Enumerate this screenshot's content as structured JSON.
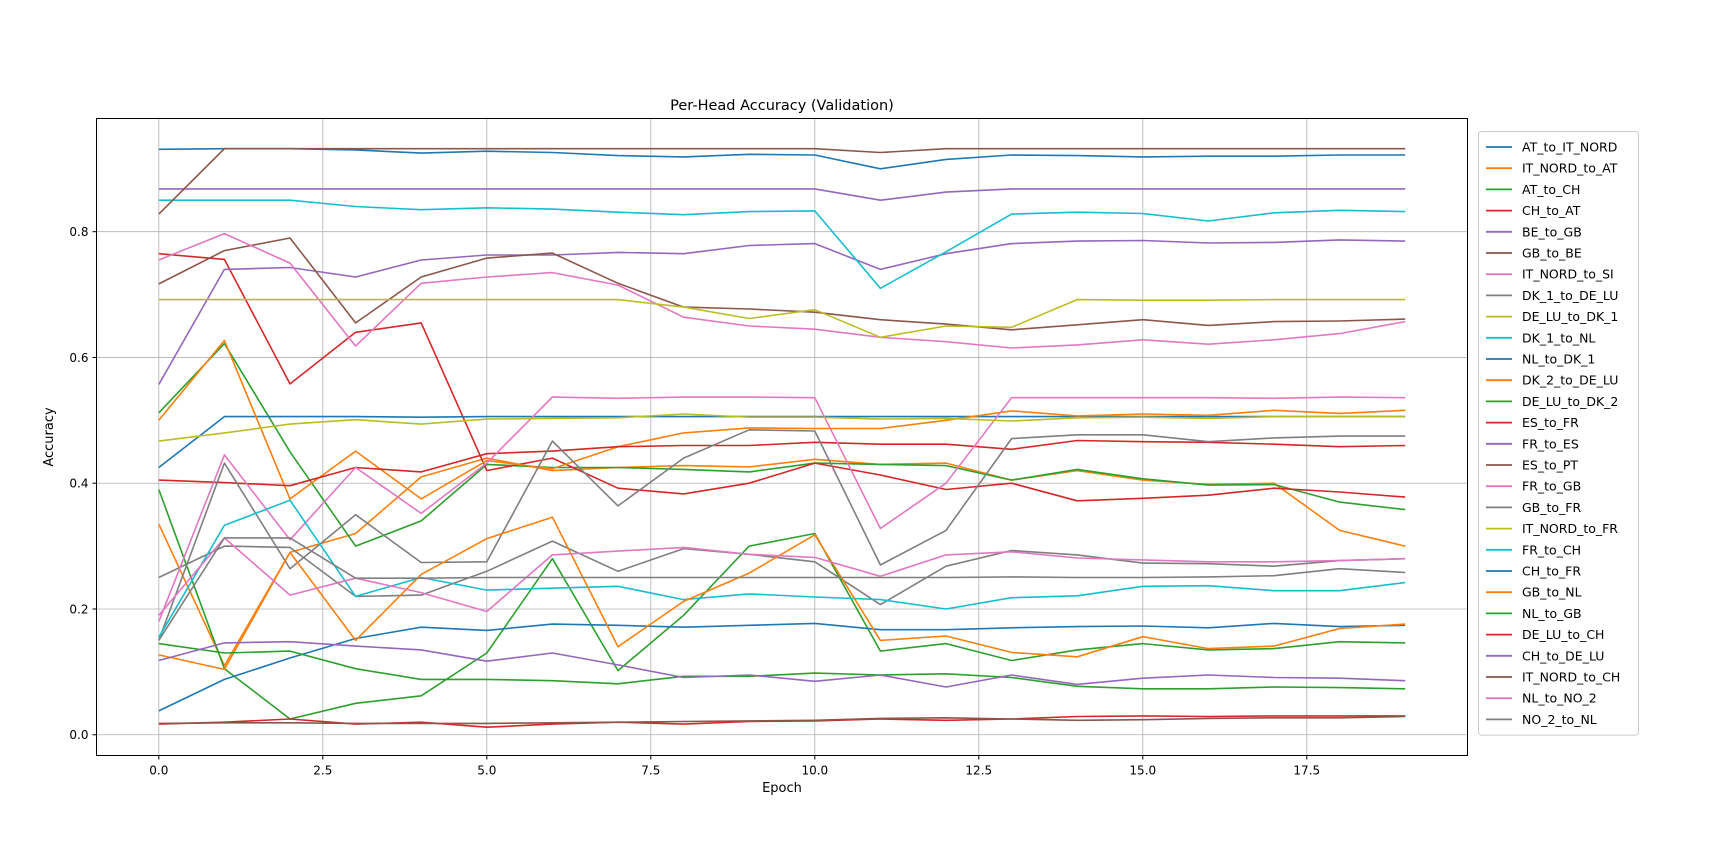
{
  "chart_data": {
    "type": "line",
    "title": "Per-Head Accuracy (Validation)",
    "xlabel": "Epoch",
    "ylabel": "Accuracy",
    "xlim": [
      -0.95,
      19.95
    ],
    "ylim": [
      -0.033,
      0.98
    ],
    "xticks": [
      0,
      2.5,
      5,
      7.5,
      10,
      12.5,
      15,
      17.5
    ],
    "xtick_labels": [
      "0.0",
      "2.5",
      "5.0",
      "7.5",
      "10.0",
      "12.5",
      "15.0",
      "17.5"
    ],
    "yticks": [
      0,
      0.2,
      0.4,
      0.6,
      0.8
    ],
    "ytick_labels": [
      "0.0",
      "0.2",
      "0.4",
      "0.6",
      "0.8"
    ],
    "grid": true,
    "legend_position": "right-outside",
    "x": [
      0,
      1,
      2,
      3,
      4,
      5,
      6,
      7,
      8,
      9,
      10,
      11,
      12,
      13,
      14,
      15,
      16,
      17,
      18,
      19
    ],
    "series": [
      {
        "name": "AT_to_IT_NORD",
        "color": "#1f77b4",
        "values": [
          0.931,
          0.932,
          0.932,
          0.93,
          0.925,
          0.928,
          0.926,
          0.921,
          0.919,
          0.923,
          0.922,
          0.9,
          0.915,
          0.922,
          0.921,
          0.919,
          0.92,
          0.92,
          0.922,
          0.922
        ]
      },
      {
        "name": "IT_NORD_to_AT",
        "color": "#ff7f0e",
        "values": [
          0.335,
          0.11,
          0.29,
          0.32,
          0.41,
          0.44,
          0.42,
          0.425,
          0.428,
          0.426,
          0.438,
          0.43,
          0.432,
          0.405,
          0.42,
          0.405,
          0.398,
          0.4,
          0.325,
          0.3
        ]
      },
      {
        "name": "AT_to_CH",
        "color": "#2ca02c",
        "values": [
          0.512,
          0.622,
          0.45,
          0.3,
          0.34,
          0.43,
          0.425,
          0.425,
          0.422,
          0.418,
          0.432,
          0.43,
          0.428,
          0.405,
          0.422,
          0.407,
          0.397,
          0.398,
          0.37,
          0.358
        ]
      },
      {
        "name": "CH_to_AT",
        "color": "#d62728",
        "values": [
          0.765,
          0.756,
          0.558,
          0.64,
          0.655,
          0.42,
          0.44,
          0.392,
          0.383,
          0.4,
          0.432,
          0.413,
          0.39,
          0.4,
          0.372,
          0.376,
          0.381,
          0.392,
          0.386,
          0.378
        ]
      },
      {
        "name": "BE_to_GB",
        "color": "#9467bd",
        "values": [
          0.557,
          0.74,
          0.743,
          0.728,
          0.755,
          0.763,
          0.763,
          0.767,
          0.765,
          0.778,
          0.781,
          0.74,
          0.765,
          0.781,
          0.785,
          0.786,
          0.782,
          0.783,
          0.787,
          0.785
        ]
      },
      {
        "name": "GB_to_BE",
        "color": "#8c564b",
        "values": [
          0.717,
          0.77,
          0.79,
          0.655,
          0.728,
          0.758,
          0.766,
          0.718,
          0.68,
          0.677,
          0.672,
          0.66,
          0.653,
          0.644,
          0.652,
          0.66,
          0.651,
          0.657,
          0.658,
          0.661
        ]
      },
      {
        "name": "IT_NORD_to_SI",
        "color": "#e377c2",
        "values": [
          0.755,
          0.797,
          0.75,
          0.618,
          0.718,
          0.728,
          0.735,
          0.715,
          0.664,
          0.65,
          0.645,
          0.632,
          0.625,
          0.615,
          0.62,
          0.628,
          0.621,
          0.628,
          0.638,
          0.657
        ]
      },
      {
        "name": "DK_1_to_DE_LU",
        "color": "#7f7f7f",
        "values": [
          0.25,
          0.3,
          0.298,
          0.22,
          0.222,
          0.26,
          0.308,
          0.26,
          0.296,
          0.287,
          0.275,
          0.207,
          0.268,
          0.293,
          0.286,
          0.273,
          0.272,
          0.268,
          0.277,
          0.28
        ]
      },
      {
        "name": "DE_LU_to_DK_1",
        "color": "#bcbd22",
        "values": [
          0.692,
          0.692,
          0.692,
          0.692,
          0.692,
          0.692,
          0.692,
          0.692,
          0.68,
          0.662,
          0.676,
          0.632,
          0.65,
          0.648,
          0.692,
          0.691,
          0.691,
          0.692,
          0.692,
          0.692
        ]
      },
      {
        "name": "DK_1_to_NL",
        "color": "#17becf",
        "values": [
          0.85,
          0.85,
          0.85,
          0.84,
          0.835,
          0.838,
          0.836,
          0.831,
          0.827,
          0.832,
          0.833,
          0.71,
          0.768,
          0.828,
          0.831,
          0.829,
          0.817,
          0.83,
          0.834,
          0.832
        ]
      },
      {
        "name": "NL_to_DK_1",
        "color": "#1f77b4",
        "values": [
          0.425,
          0.506,
          0.506,
          0.506,
          0.505,
          0.506,
          0.506,
          0.506,
          0.506,
          0.506,
          0.506,
          0.506,
          0.506,
          0.506,
          0.506,
          0.506,
          0.506,
          0.506,
          0.506,
          0.506
        ]
      },
      {
        "name": "DK_2_to_DE_LU",
        "color": "#ff7f0e",
        "values": [
          0.5,
          0.627,
          0.375,
          0.451,
          0.375,
          0.436,
          0.423,
          0.458,
          0.48,
          0.488,
          0.487,
          0.487,
          0.5,
          0.515,
          0.507,
          0.51,
          0.508,
          0.516,
          0.511,
          0.516
        ]
      },
      {
        "name": "DE_LU_to_DK_2",
        "color": "#2ca02c",
        "values": [
          0.39,
          0.105,
          0.025,
          0.05,
          0.062,
          0.13,
          0.28,
          0.102,
          0.19,
          0.3,
          0.32,
          0.133,
          0.145,
          0.118,
          0.135,
          0.145,
          0.135,
          0.137,
          0.148,
          0.146
        ]
      },
      {
        "name": "ES_to_FR",
        "color": "#d62728",
        "values": [
          0.405,
          0.401,
          0.396,
          0.425,
          0.418,
          0.447,
          0.451,
          0.458,
          0.46,
          0.46,
          0.465,
          0.462,
          0.462,
          0.454,
          0.468,
          0.466,
          0.465,
          0.462,
          0.458,
          0.46
        ]
      },
      {
        "name": "FR_to_ES",
        "color": "#9467bd",
        "values": [
          0.868,
          0.868,
          0.868,
          0.868,
          0.868,
          0.868,
          0.868,
          0.868,
          0.868,
          0.868,
          0.868,
          0.85,
          0.863,
          0.868,
          0.868,
          0.868,
          0.868,
          0.868,
          0.868,
          0.868
        ]
      },
      {
        "name": "ES_to_PT",
        "color": "#8c564b",
        "values": [
          0.828,
          0.932,
          0.932,
          0.932,
          0.932,
          0.932,
          0.932,
          0.932,
          0.932,
          0.932,
          0.932,
          0.926,
          0.932,
          0.932,
          0.932,
          0.932,
          0.932,
          0.932,
          0.932,
          0.932
        ]
      },
      {
        "name": "FR_to_GB",
        "color": "#e377c2",
        "values": [
          0.18,
          0.445,
          0.31,
          0.425,
          0.352,
          0.432,
          0.537,
          0.535,
          0.537,
          0.537,
          0.536,
          0.328,
          0.4,
          0.536,
          0.536,
          0.536,
          0.536,
          0.535,
          0.537,
          0.536
        ]
      },
      {
        "name": "GB_to_FR",
        "color": "#7f7f7f",
        "values": [
          0.15,
          0.432,
          0.264,
          0.35,
          0.274,
          0.275,
          0.467,
          0.364,
          0.44,
          0.485,
          0.483,
          0.27,
          0.325,
          0.471,
          0.477,
          0.477,
          0.466,
          0.472,
          0.475,
          0.475
        ]
      },
      {
        "name": "IT_NORD_to_FR",
        "color": "#bcbd22",
        "values": [
          0.467,
          0.48,
          0.494,
          0.501,
          0.494,
          0.502,
          0.503,
          0.504,
          0.51,
          0.505,
          0.505,
          0.502,
          0.503,
          0.499,
          0.504,
          0.505,
          0.503,
          0.506,
          0.506,
          0.506
        ]
      },
      {
        "name": "FR_to_CH",
        "color": "#17becf",
        "values": [
          0.155,
          0.333,
          0.373,
          0.22,
          0.25,
          0.23,
          0.233,
          0.236,
          0.215,
          0.224,
          0.219,
          0.215,
          0.2,
          0.218,
          0.221,
          0.236,
          0.237,
          0.229,
          0.229,
          0.242
        ]
      },
      {
        "name": "CH_to_FR",
        "color": "#1f77b4",
        "values": [
          0.038,
          0.088,
          0.122,
          0.153,
          0.171,
          0.166,
          0.176,
          0.174,
          0.171,
          0.174,
          0.177,
          0.167,
          0.167,
          0.17,
          0.172,
          0.173,
          0.17,
          0.177,
          0.172,
          0.174
        ]
      },
      {
        "name": "GB_to_NL",
        "color": "#ff7f0e",
        "values": [
          0.127,
          0.104,
          0.29,
          0.15,
          0.255,
          0.312,
          0.346,
          0.14,
          0.212,
          0.257,
          0.318,
          0.15,
          0.157,
          0.131,
          0.124,
          0.156,
          0.137,
          0.141,
          0.169,
          0.176
        ]
      },
      {
        "name": "NL_to_GB",
        "color": "#2ca02c",
        "values": [
          0.145,
          0.13,
          0.133,
          0.105,
          0.088,
          0.088,
          0.086,
          0.081,
          0.093,
          0.093,
          0.098,
          0.095,
          0.097,
          0.091,
          0.077,
          0.073,
          0.073,
          0.076,
          0.075,
          0.073
        ]
      },
      {
        "name": "DE_LU_to_CH",
        "color": "#d62728",
        "values": [
          0.017,
          0.02,
          0.025,
          0.017,
          0.02,
          0.012,
          0.017,
          0.02,
          0.017,
          0.021,
          0.022,
          0.025,
          0.023,
          0.025,
          0.029,
          0.03,
          0.029,
          0.03,
          0.03,
          0.03
        ]
      },
      {
        "name": "CH_to_DE_LU",
        "color": "#9467bd",
        "values": [
          0.118,
          0.146,
          0.148,
          0.141,
          0.135,
          0.117,
          0.13,
          0.111,
          0.091,
          0.095,
          0.085,
          0.095,
          0.076,
          0.095,
          0.08,
          0.09,
          0.095,
          0.091,
          0.09,
          0.086
        ]
      },
      {
        "name": "IT_NORD_to_CH",
        "color": "#8c564b",
        "values": [
          0.018,
          0.019,
          0.019,
          0.018,
          0.018,
          0.018,
          0.019,
          0.02,
          0.021,
          0.022,
          0.023,
          0.026,
          0.027,
          0.025,
          0.023,
          0.024,
          0.026,
          0.027,
          0.027,
          0.029
        ]
      },
      {
        "name": "NL_to_NO_2",
        "color": "#e377c2",
        "values": [
          0.19,
          0.313,
          0.222,
          0.249,
          0.226,
          0.196,
          0.286,
          0.292,
          0.298,
          0.287,
          0.282,
          0.252,
          0.286,
          0.291,
          0.281,
          0.278,
          0.275,
          0.275,
          0.277,
          0.28
        ]
      },
      {
        "name": "NO_2_to_NL",
        "color": "#7f7f7f",
        "values": [
          0.15,
          0.313,
          0.313,
          0.249,
          0.249,
          0.25,
          0.25,
          0.25,
          0.25,
          0.25,
          0.25,
          0.25,
          0.25,
          0.251,
          0.25,
          0.25,
          0.251,
          0.253,
          0.264,
          0.258
        ]
      }
    ]
  }
}
